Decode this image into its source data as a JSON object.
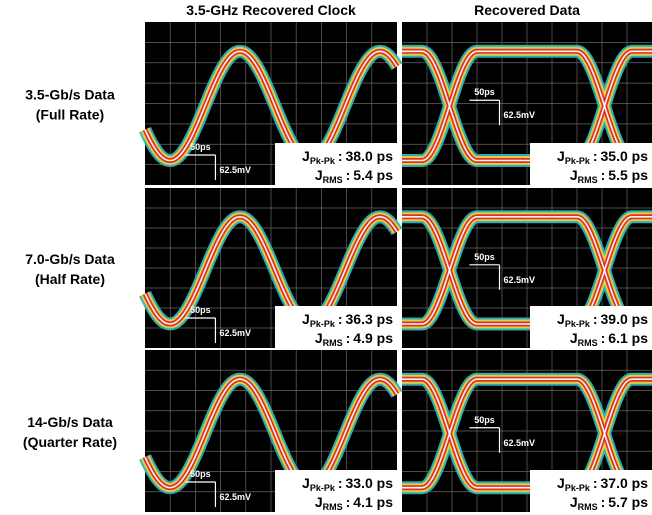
{
  "column_headers": [
    "3.5-GHz Recovered Clock",
    "Recovered Data"
  ],
  "rows": [
    {
      "label": [
        "3.5-Gb/s Data",
        "(Full Rate)"
      ],
      "panels": [
        {
          "time_scale": "50ps",
          "voltage_scale": "62.5mV",
          "jitter": [
            {
              "symbol": "J",
              "subscript": "Pk-Pk",
              "separator": ":",
              "value": "38.0 ps"
            },
            {
              "symbol": "J",
              "subscript": "RMS",
              "separator": ":",
              "value": "5.4 ps"
            }
          ]
        },
        {
          "time_scale": "50ps",
          "voltage_scale": "62.5mV",
          "jitter": [
            {
              "symbol": "J",
              "subscript": "Pk-Pk",
              "separator": ":",
              "value": "35.0 ps"
            },
            {
              "symbol": "J",
              "subscript": "RMS",
              "separator": ":",
              "value": "5.5 ps"
            }
          ]
        }
      ]
    },
    {
      "label": [
        "7.0-Gb/s Data",
        "(Half Rate)"
      ],
      "panels": [
        {
          "time_scale": "50ps",
          "voltage_scale": "62.5mV",
          "jitter": [
            {
              "symbol": "J",
              "subscript": "Pk-Pk",
              "separator": ":",
              "value": "36.3 ps"
            },
            {
              "symbol": "J",
              "subscript": "RMS",
              "separator": ":",
              "value": "4.9 ps"
            }
          ]
        },
        {
          "time_scale": "50ps",
          "voltage_scale": "62.5mV",
          "jitter": [
            {
              "symbol": "J",
              "subscript": "Pk-Pk",
              "separator": ":",
              "value": "39.0 ps"
            },
            {
              "symbol": "J",
              "subscript": "RMS",
              "separator": ":",
              "value": "6.1 ps"
            }
          ]
        }
      ]
    },
    {
      "label": [
        "14-Gb/s Data",
        "(Quarter Rate)"
      ],
      "panels": [
        {
          "time_scale": "50ps",
          "voltage_scale": "62.5mV",
          "jitter": [
            {
              "symbol": "J",
              "subscript": "Pk-Pk",
              "separator": ":",
              "value": "33.0 ps"
            },
            {
              "symbol": "J",
              "subscript": "RMS",
              "separator": ":",
              "value": "4.1 ps"
            }
          ]
        },
        {
          "time_scale": "50ps",
          "voltage_scale": "62.5mV",
          "jitter": [
            {
              "symbol": "J",
              "subscript": "Pk-Pk",
              "separator": ":",
              "value": "37.0 ps"
            },
            {
              "symbol": "J",
              "subscript": "RMS",
              "separator": ":",
              "value": "5.7 ps"
            }
          ]
        }
      ]
    }
  ]
}
